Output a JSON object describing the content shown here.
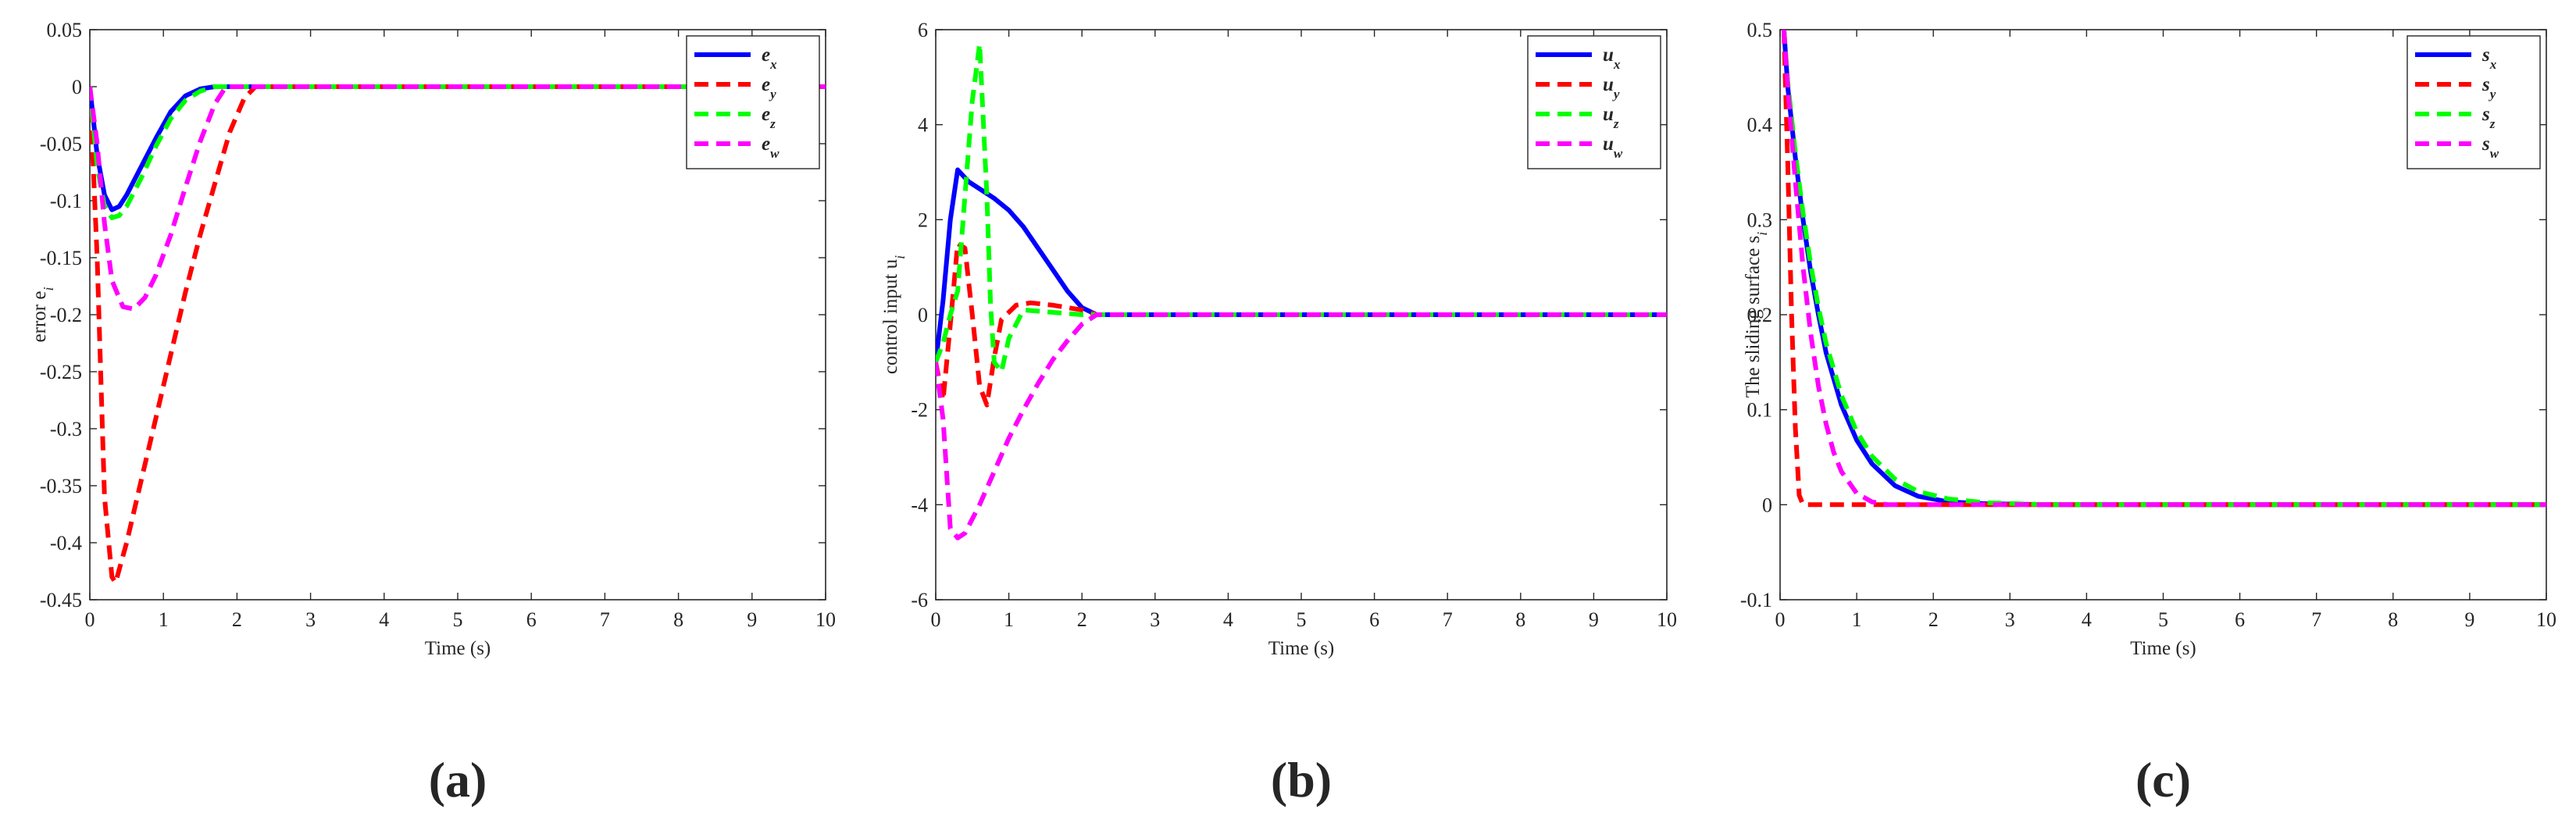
{
  "colors": {
    "blue": "#0000ff",
    "red": "#ff0000",
    "green": "#00ff00",
    "magenta": "#ff00ff",
    "axis": "#262626"
  },
  "chart_data": [
    {
      "type": "line",
      "panel_label": "(a)",
      "title": "",
      "xlabel": "Time (s)",
      "ylabel": "error e",
      "ylabel_sub": "i",
      "xlim": [
        0,
        10
      ],
      "ylim": [
        -0.45,
        0.05
      ],
      "xticks": [
        0,
        1,
        2,
        3,
        4,
        5,
        6,
        7,
        8,
        9,
        10
      ],
      "yticks": [
        0.05,
        0,
        -0.05,
        -0.1,
        -0.15,
        -0.2,
        -0.25,
        -0.3,
        -0.35,
        -0.4,
        -0.45
      ],
      "legend_position": "top-right",
      "grid": false,
      "series": [
        {
          "name": "e",
          "sub": "x",
          "color": "#0000ff",
          "dash": "solid",
          "x": [
            0,
            0.1,
            0.2,
            0.3,
            0.4,
            0.5,
            0.7,
            0.9,
            1.1,
            1.3,
            1.5,
            1.7,
            1.9,
            2.2,
            10
          ],
          "y": [
            0,
            -0.06,
            -0.095,
            -0.108,
            -0.105,
            -0.095,
            -0.07,
            -0.045,
            -0.022,
            -0.008,
            -0.002,
            0,
            0,
            0,
            0
          ]
        },
        {
          "name": "e",
          "sub": "y",
          "color": "#ff0000",
          "dash": "dash",
          "x": [
            0,
            0.1,
            0.2,
            0.3,
            0.35,
            0.5,
            0.7,
            0.9,
            1.1,
            1.3,
            1.5,
            1.7,
            1.9,
            2.1,
            2.25,
            10
          ],
          "y": [
            0,
            -0.15,
            -0.36,
            -0.43,
            -0.435,
            -0.4,
            -0.345,
            -0.29,
            -0.235,
            -0.18,
            -0.13,
            -0.085,
            -0.04,
            -0.01,
            0,
            0
          ]
        },
        {
          "name": "e",
          "sub": "z",
          "color": "#00ff00",
          "dash": "dash",
          "x": [
            0,
            0.1,
            0.2,
            0.3,
            0.4,
            0.5,
            0.7,
            0.9,
            1.1,
            1.3,
            1.5,
            1.7,
            1.9,
            2.2,
            10
          ],
          "y": [
            0,
            -0.07,
            -0.105,
            -0.115,
            -0.113,
            -0.105,
            -0.08,
            -0.052,
            -0.028,
            -0.012,
            -0.004,
            0,
            0,
            0,
            0
          ]
        },
        {
          "name": "e",
          "sub": "w",
          "color": "#ff00ff",
          "dash": "dash",
          "x": [
            0,
            0.1,
            0.2,
            0.3,
            0.45,
            0.6,
            0.75,
            0.9,
            1.1,
            1.3,
            1.5,
            1.7,
            1.85,
            2.2,
            10
          ],
          "y": [
            0,
            -0.05,
            -0.12,
            -0.17,
            -0.193,
            -0.195,
            -0.185,
            -0.165,
            -0.13,
            -0.088,
            -0.048,
            -0.015,
            0,
            0,
            0
          ]
        }
      ]
    },
    {
      "type": "line",
      "panel_label": "(b)",
      "title": "",
      "xlabel": "Time (s)",
      "ylabel": "control input u",
      "ylabel_sub": "i",
      "xlim": [
        0,
        10
      ],
      "ylim": [
        -6,
        6
      ],
      "xticks": [
        0,
        1,
        2,
        3,
        4,
        5,
        6,
        7,
        8,
        9,
        10
      ],
      "yticks": [
        6,
        4,
        2,
        0,
        -2,
        -4,
        -6
      ],
      "legend_position": "top-right",
      "grid": false,
      "series": [
        {
          "name": "u",
          "sub": "x",
          "color": "#0000ff",
          "dash": "solid",
          "x": [
            0,
            0.1,
            0.2,
            0.3,
            0.45,
            0.6,
            0.8,
            1.0,
            1.2,
            1.4,
            1.6,
            1.8,
            2.0,
            2.2,
            10
          ],
          "y": [
            -1,
            0.3,
            2.0,
            3.05,
            2.8,
            2.65,
            2.45,
            2.2,
            1.85,
            1.4,
            0.95,
            0.5,
            0.15,
            0,
            0
          ]
        },
        {
          "name": "u",
          "sub": "y",
          "color": "#ff0000",
          "dash": "dash",
          "x": [
            0,
            0.1,
            0.2,
            0.3,
            0.4,
            0.5,
            0.6,
            0.7,
            0.8,
            0.9,
            1.1,
            1.3,
            1.6,
            2.0,
            2.2,
            10
          ],
          "y": [
            -1,
            -1.8,
            -0.2,
            1.5,
            1.4,
            0,
            -1.5,
            -1.9,
            -0.9,
            -0.1,
            0.2,
            0.25,
            0.2,
            0.1,
            0,
            0
          ]
        },
        {
          "name": "u",
          "sub": "z",
          "color": "#00ff00",
          "dash": "dash",
          "x": [
            0,
            0.1,
            0.2,
            0.3,
            0.4,
            0.5,
            0.6,
            0.7,
            0.75,
            0.8,
            0.9,
            1.0,
            1.2,
            1.6,
            2.0,
            2.2,
            10
          ],
          "y": [
            -1,
            -0.6,
            0,
            0.5,
            2.5,
            4.5,
            5.7,
            2.5,
            0.2,
            -1.0,
            -1.2,
            -0.5,
            0.1,
            0.05,
            0,
            0,
            0
          ]
        },
        {
          "name": "u",
          "sub": "w",
          "color": "#ff00ff",
          "dash": "dash",
          "x": [
            0,
            0.1,
            0.2,
            0.3,
            0.4,
            0.6,
            0.8,
            1.0,
            1.2,
            1.4,
            1.6,
            1.8,
            2.0,
            2.2,
            10
          ],
          "y": [
            -1,
            -2.2,
            -4.5,
            -4.7,
            -4.6,
            -4.0,
            -3.3,
            -2.6,
            -2.0,
            -1.45,
            -0.95,
            -0.55,
            -0.2,
            0,
            0
          ]
        }
      ]
    },
    {
      "type": "line",
      "panel_label": "(c)",
      "title": "",
      "xlabel": "Time (s)",
      "ylabel": "The sliding surface s",
      "ylabel_sub": "i",
      "xlim": [
        0,
        10
      ],
      "ylim": [
        -0.1,
        0.5
      ],
      "xticks": [
        0,
        1,
        2,
        3,
        4,
        5,
        6,
        7,
        8,
        9,
        10
      ],
      "yticks": [
        0.5,
        0.4,
        0.3,
        0.2,
        0.1,
        0,
        -0.1
      ],
      "legend_position": "top-right",
      "grid": false,
      "series": [
        {
          "name": "s",
          "sub": "x",
          "color": "#0000ff",
          "dash": "solid",
          "x": [
            0.05,
            0.1,
            0.2,
            0.3,
            0.4,
            0.5,
            0.6,
            0.8,
            1.0,
            1.2,
            1.5,
            1.8,
            2.2,
            2.7,
            3.5,
            10
          ],
          "y": [
            0.5,
            0.44,
            0.365,
            0.3,
            0.245,
            0.2,
            0.16,
            0.105,
            0.068,
            0.043,
            0.02,
            0.009,
            0.003,
            0.001,
            0,
            0
          ]
        },
        {
          "name": "s",
          "sub": "y",
          "color": "#ff0000",
          "dash": "dash",
          "x": [
            0.05,
            0.1,
            0.15,
            0.2,
            0.25,
            0.3,
            10
          ],
          "y": [
            0.5,
            0.36,
            0.2,
            0.08,
            0.01,
            0,
            0
          ]
        },
        {
          "name": "s",
          "sub": "z",
          "color": "#00ff00",
          "dash": "dash",
          "x": [
            0.05,
            0.1,
            0.2,
            0.3,
            0.4,
            0.5,
            0.6,
            0.8,
            1.0,
            1.2,
            1.5,
            1.8,
            2.2,
            2.7,
            3.5,
            10
          ],
          "y": [
            0.5,
            0.445,
            0.37,
            0.307,
            0.253,
            0.208,
            0.17,
            0.115,
            0.077,
            0.051,
            0.027,
            0.014,
            0.006,
            0.002,
            0,
            0
          ]
        },
        {
          "name": "s",
          "sub": "w",
          "color": "#ff00ff",
          "dash": "dash",
          "x": [
            0.05,
            0.1,
            0.2,
            0.3,
            0.4,
            0.5,
            0.6,
            0.7,
            0.8,
            1.0,
            1.2,
            1.4,
            1.7,
            10
          ],
          "y": [
            0.5,
            0.44,
            0.34,
            0.25,
            0.18,
            0.125,
            0.085,
            0.055,
            0.035,
            0.012,
            0.003,
            0,
            0,
            0
          ]
        }
      ]
    }
  ]
}
